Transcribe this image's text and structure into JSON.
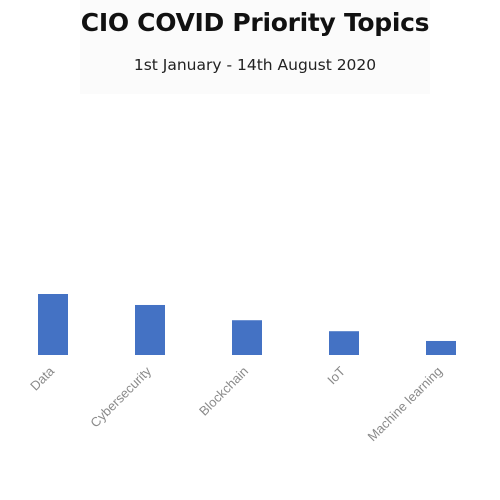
{
  "chart_data": {
    "type": "bar",
    "title": "CIO COVID Priority Topics",
    "subtitle": "1st January - 14th August 2020",
    "categories": [
      "Data",
      "Cybersecurity",
      "Blockchain",
      "IoT",
      "Machine learning"
    ],
    "values": [
      100,
      82,
      57,
      39,
      23
    ],
    "ylim": [
      0,
      100
    ],
    "grid": false,
    "legend": "none",
    "bar_color": "#4472c4"
  }
}
